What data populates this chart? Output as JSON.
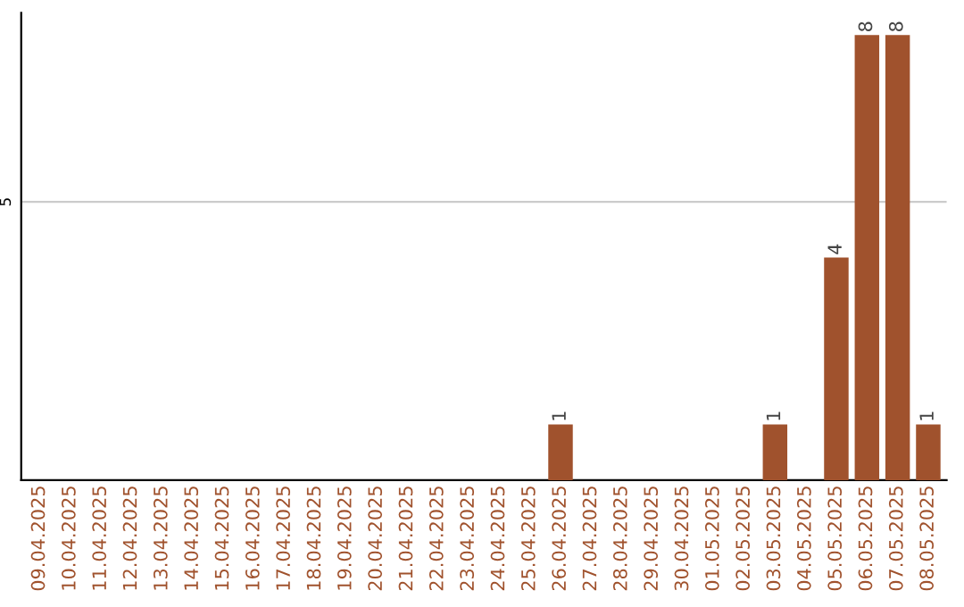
{
  "chart_data": {
    "type": "bar",
    "categories": [
      "09.04.2025",
      "10.04.2025",
      "11.04.2025",
      "12.04.2025",
      "13.04.2025",
      "14.04.2025",
      "15.04.2025",
      "16.04.2025",
      "17.04.2025",
      "18.04.2025",
      "19.04.2025",
      "20.04.2025",
      "21.04.2025",
      "22.04.2025",
      "23.04.2025",
      "24.04.2025",
      "25.04.2025",
      "26.04.2025",
      "27.04.2025",
      "28.04.2025",
      "29.04.2025",
      "30.04.2025",
      "01.05.2025",
      "02.05.2025",
      "03.05.2025",
      "04.05.2025",
      "05.05.2025",
      "06.05.2025",
      "07.05.2025",
      "08.05.2025"
    ],
    "values": [
      null,
      null,
      null,
      null,
      null,
      null,
      null,
      null,
      null,
      null,
      null,
      null,
      null,
      null,
      null,
      null,
      null,
      1,
      null,
      null,
      null,
      null,
      null,
      null,
      1,
      null,
      4,
      8,
      8,
      1
    ],
    "value_labels": [
      null,
      null,
      null,
      null,
      null,
      null,
      null,
      null,
      null,
      null,
      null,
      null,
      null,
      null,
      null,
      null,
      null,
      "1",
      null,
      null,
      null,
      null,
      null,
      null,
      "1",
      null,
      "4",
      "8",
      "8",
      "1"
    ],
    "color": "#a0522d",
    "ylim": [
      0,
      8.4
    ],
    "ref_lines": [
      {
        "axis": "y",
        "value": 5,
        "label": "5",
        "color": "#cccccc"
      }
    ]
  }
}
